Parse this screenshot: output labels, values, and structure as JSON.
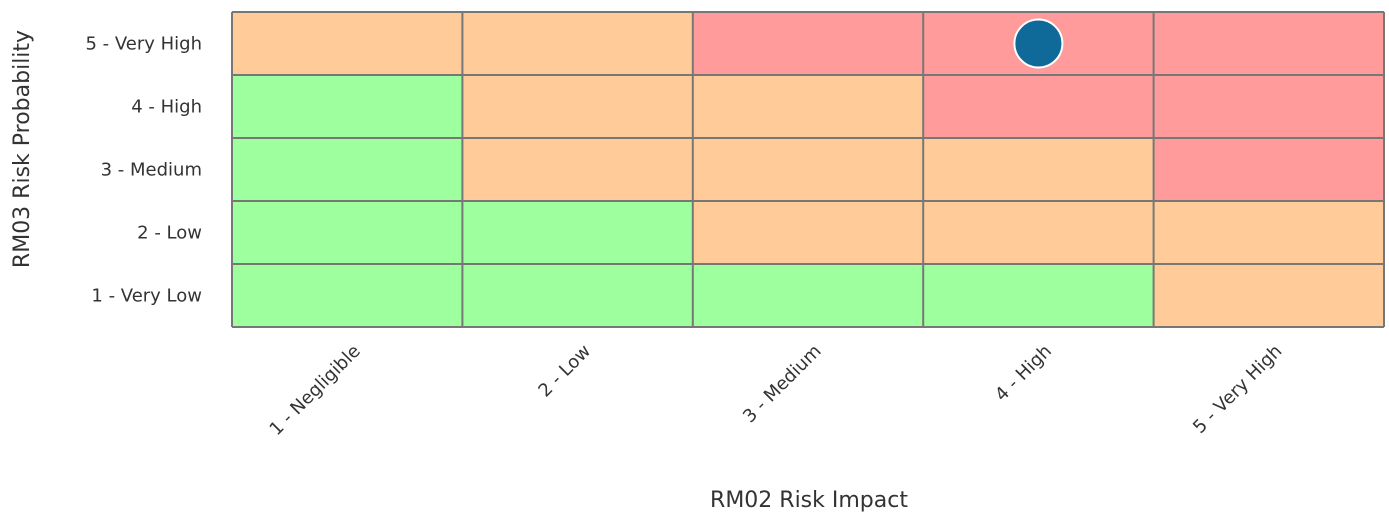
{
  "chart_data": {
    "type": "heatmap",
    "title": "",
    "xlabel": "RM02 Risk Impact",
    "ylabel": "RM03 Risk Probability",
    "x_categories": [
      "1 - Negligible",
      "2 - Low",
      "3 - Medium",
      "4 - High",
      "5 - Very High"
    ],
    "y_categories": [
      "1 - Very Low",
      "2 - Low",
      "3 - Medium",
      "4 - High",
      "5 - Very High"
    ],
    "levels": {
      "low": "#9dff9d",
      "medium": "#ffcc99",
      "high": "#ff9b9b"
    },
    "grid": [
      [
        "low",
        "low",
        "low",
        "low",
        "medium"
      ],
      [
        "low",
        "low",
        "medium",
        "medium",
        "medium"
      ],
      [
        "low",
        "medium",
        "medium",
        "medium",
        "high"
      ],
      [
        "low",
        "medium",
        "medium",
        "high",
        "high"
      ],
      [
        "medium",
        "medium",
        "high",
        "high",
        "high"
      ]
    ],
    "points": [
      {
        "impact": "4 - High",
        "probability": "5 - Very High",
        "color": "#106a99"
      }
    ],
    "border_color": "#777777",
    "legend": "none"
  }
}
